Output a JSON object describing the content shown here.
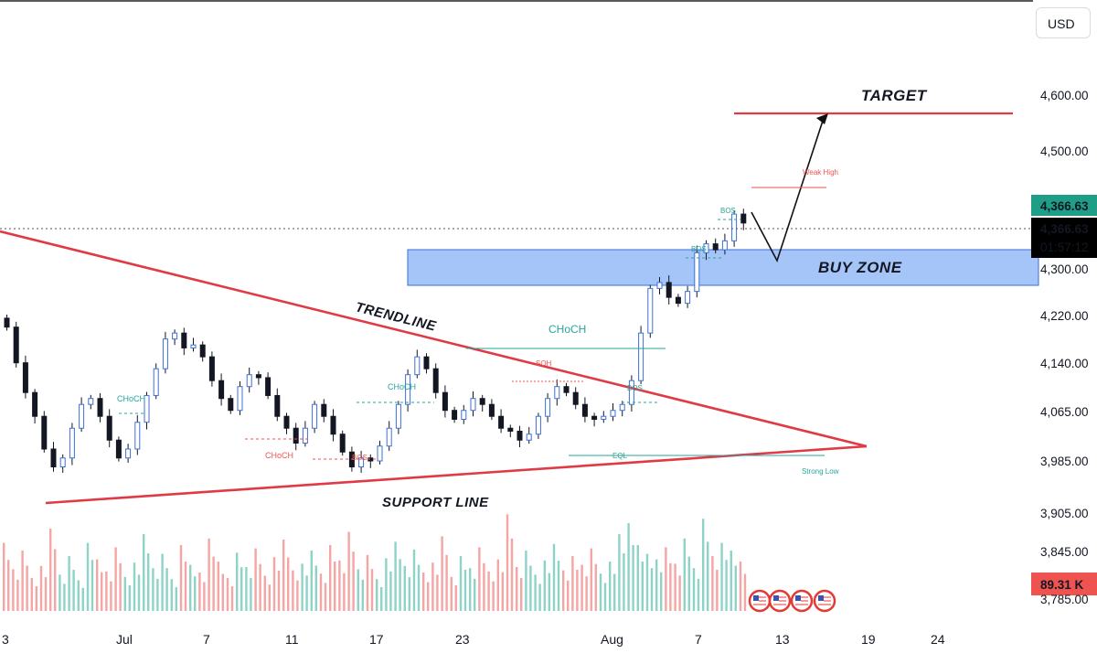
{
  "currency_button": "USD",
  "colors": {
    "up": "#26a69a",
    "down": "#ef5350",
    "bull_volume": "#8dd3c8",
    "bear_volume": "#f5a5a3",
    "trendline": "#e03a45",
    "buy_zone": "#4f8df0",
    "target_line": "#e03a45",
    "dark_tag": "#000000",
    "green_tag": "#1e9e86",
    "red_tag": "#ef5350"
  },
  "chart_data": {
    "type": "candlestick",
    "y_axis": {
      "ticks": [
        "4,600.00",
        "4,500.00",
        "4,366.63",
        "4,366.63",
        "01:57:12",
        "4,300.00",
        "4,220.00",
        "4,140.00",
        "4,065.00",
        "3,985.00",
        "3,905.00",
        "3,845.00",
        "89.31 K",
        "3,785.00"
      ],
      "tick_values": [
        4600,
        4500,
        4220,
        4140,
        4065,
        3985,
        3905,
        3845
      ],
      "range": [
        3780,
        4645
      ]
    },
    "x_axis": {
      "ticks": [
        "3",
        "Jul",
        "7",
        "11",
        "17",
        "23",
        "Aug",
        "7",
        "13",
        "19",
        "24"
      ]
    },
    "current_price": {
      "label": "4,366.63",
      "value": 4366.63,
      "countdown": "01:57:12"
    },
    "volume_label": "89.31 K",
    "close_path": [
      4210,
      4150,
      4100,
      4060,
      4005,
      3975,
      3990,
      4040,
      4080,
      4090,
      4060,
      4020,
      3990,
      4005,
      4050,
      4095,
      4140,
      4190,
      4200,
      4175,
      4180,
      4160,
      4120,
      4090,
      4070,
      4110,
      4130,
      4125,
      4095,
      4060,
      4040,
      4015,
      4040,
      4080,
      4060,
      4030,
      4000,
      3975,
      3990,
      3985,
      4010,
      4040,
      4080,
      4130,
      4160,
      4140,
      4100,
      4070,
      4055,
      4070,
      4090,
      4080,
      4060,
      4040,
      4035,
      4020,
      4030,
      4060,
      4090,
      4110,
      4100,
      4080,
      4060,
      4055,
      4060,
      4070,
      4080,
      4120,
      4200,
      4275,
      4285,
      4260,
      4250,
      4270,
      4335,
      4350,
      4340,
      4355,
      4400,
      4385
    ],
    "volumes": [
      0.62,
      0.38,
      0.55,
      0.3,
      0.41,
      0.75,
      0.33,
      0.5,
      0.28,
      0.62,
      0.47,
      0.36,
      0.58,
      0.31,
      0.44,
      0.7,
      0.39,
      0.52,
      0.29,
      0.6,
      0.42,
      0.35,
      0.66,
      0.45,
      0.3,
      0.53,
      0.4,
      0.57,
      0.32,
      0.49,
      0.65,
      0.37,
      0.43,
      0.55,
      0.34,
      0.6,
      0.46,
      0.72,
      0.38,
      0.51,
      0.29,
      0.48,
      0.63,
      0.41,
      0.56,
      0.35,
      0.44,
      0.68,
      0.31,
      0.5,
      0.39,
      0.58,
      0.36,
      0.47,
      0.88,
      0.4,
      0.55,
      0.33,
      0.46,
      0.61,
      0.37,
      0.5,
      0.42,
      0.57,
      0.34,
      0.45,
      0.7,
      0.8,
      0.6,
      0.52,
      0.47,
      0.58,
      0.43,
      0.66,
      0.39,
      0.84,
      0.5,
      0.62,
      0.55,
      0.45
    ],
    "annotations": {
      "target": "TARGET",
      "buy_zone": "BUY ZONE",
      "trendline": "TRENDLINE",
      "support_line": "SUPPORT LINE",
      "smc_labels": [
        "CHoCH",
        "CHoCH",
        "CHoCH",
        "CHoCH",
        "BOS",
        "BOS",
        "BOS",
        "BOS",
        "SOH",
        "EQL",
        "Strong Low",
        "Weak High"
      ]
    }
  }
}
